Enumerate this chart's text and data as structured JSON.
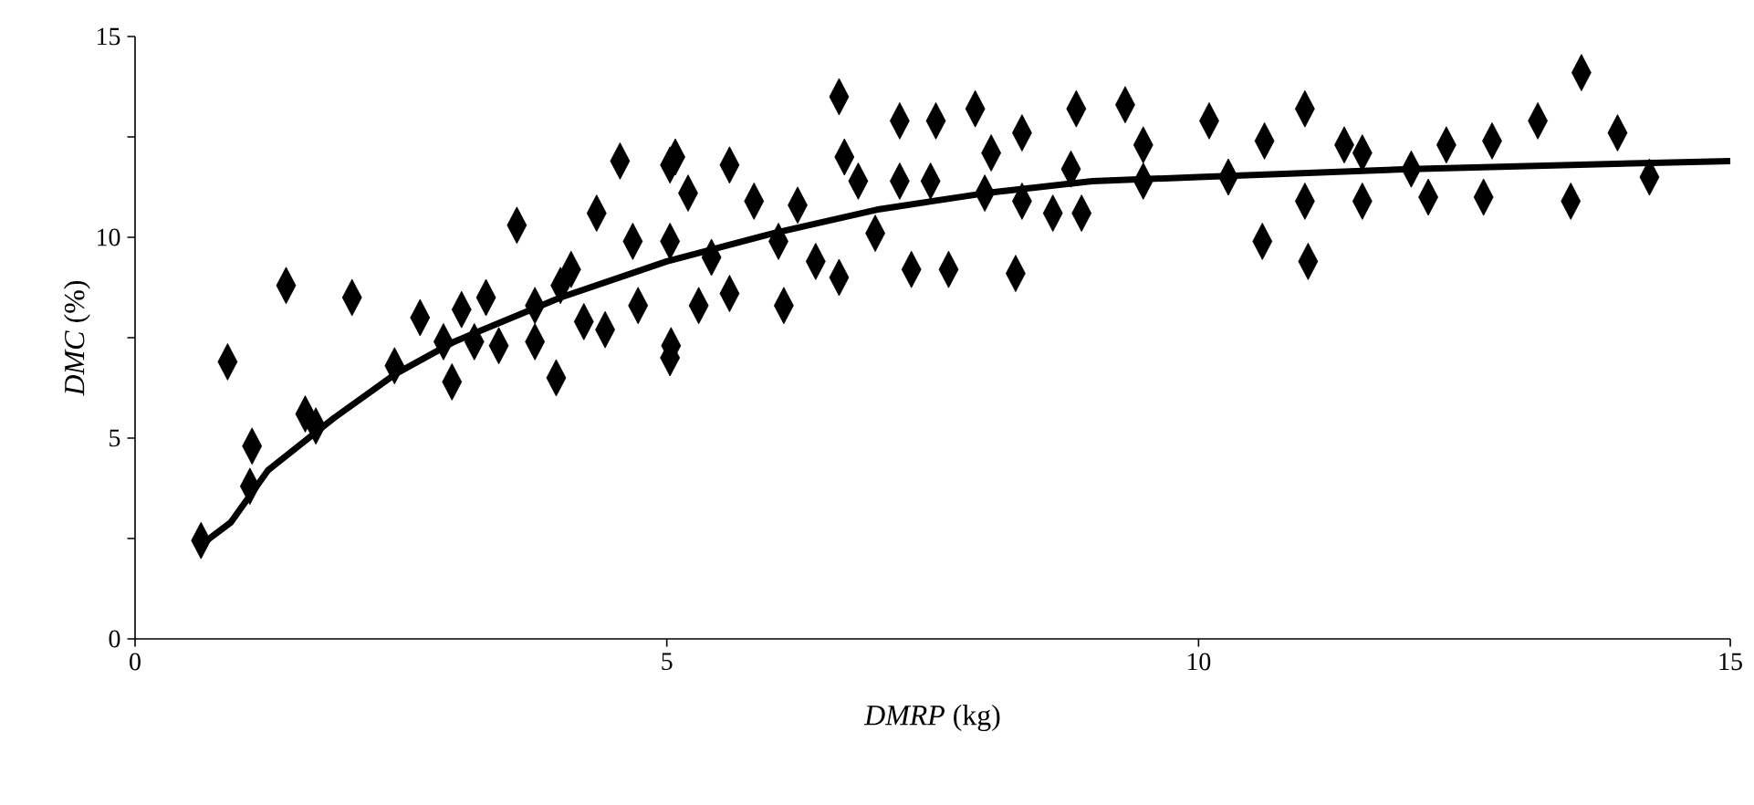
{
  "chart_data": {
    "type": "scatter",
    "xlabel": "*DMRP* (kg)",
    "ylabel": "*DMC* (%)",
    "xlim": [
      0,
      15
    ],
    "ylim": [
      0,
      15
    ],
    "xticks": [
      0,
      5,
      10,
      15
    ],
    "yticks": [
      0,
      {
        "value": 2.5,
        "label": null
      },
      5,
      {
        "value": 7.5,
        "label": null
      },
      10,
      {
        "value": 12.5,
        "label": null
      },
      15
    ],
    "grid": false,
    "marker": "diamond",
    "series": [
      {
        "color": "#000000",
        "x": [
          0.62,
          0.87,
          1.1,
          1.08,
          1.42,
          2.04,
          1.7,
          1.6,
          2.44,
          2.68,
          2.98,
          3.07,
          3.3,
          3.59,
          3.42,
          3.76,
          3.96,
          4.0,
          4.22,
          4.34,
          4.56,
          4.42,
          4.68,
          5.03,
          5.03,
          5.04,
          4.73,
          5.2,
          3.19,
          3.76,
          2.9,
          4.1,
          5.08,
          5.03,
          5.3,
          5.59,
          5.42,
          5.82,
          6.1,
          6.23,
          6.62,
          6.62,
          6.67,
          6.96,
          7.19,
          7.3,
          7.53,
          7.65,
          7.9,
          7.99,
          8.28,
          8.34,
          8.63,
          8.85,
          8.9,
          9.31,
          9.48,
          9.48,
          10.1,
          6.4,
          7.19,
          6.8,
          7.48,
          8.34,
          5.59,
          6.05,
          8.05,
          8.8,
          10.6,
          11.0,
          11.03,
          10.62,
          10.28,
          11.37,
          11.54,
          11.54,
          12.0,
          12.16,
          12.33,
          12.76,
          12.68,
          13.19,
          13.5,
          13.6,
          13.94,
          14.24,
          11.0
        ],
        "values": [
          2.45,
          6.9,
          4.8,
          3.8,
          8.8,
          8.5,
          5.3,
          5.6,
          6.8,
          8.0,
          6.4,
          8.2,
          8.5,
          10.3,
          7.3,
          8.3,
          6.5,
          8.8,
          7.9,
          10.6,
          11.9,
          7.7,
          9.9,
          11.8,
          9.9,
          7.3,
          8.3,
          11.1,
          7.4,
          7.4,
          7.4,
          9.2,
          12.0,
          7.0,
          8.3,
          11.8,
          9.5,
          10.9,
          8.3,
          10.8,
          13.5,
          9.0,
          12.0,
          10.1,
          12.9,
          9.2,
          12.9,
          9.2,
          13.2,
          11.1,
          9.1,
          12.6,
          10.6,
          13.2,
          10.6,
          13.3,
          11.4,
          12.3,
          12.9,
          9.4,
          11.4,
          11.4,
          11.4,
          10.9,
          8.6,
          9.9,
          12.1,
          11.7,
          9.9,
          13.2,
          9.4,
          12.4,
          11.5,
          12.3,
          10.9,
          12.1,
          11.7,
          11.0,
          12.3,
          12.4,
          11.0,
          12.9,
          10.9,
          14.1,
          12.6,
          11.5,
          10.9
        ]
      },
      {
        "type": "line",
        "color": "#000000",
        "marker": "none",
        "line_style": "solid",
        "x": [
          0.6,
          0.9,
          1.25,
          1.87,
          2.45,
          3,
          4,
          5,
          6,
          7,
          8,
          9,
          10,
          12,
          15
        ],
        "values": [
          2.3,
          2.9,
          4.2,
          5.5,
          6.6,
          7.4,
          8.5,
          9.4,
          10.1,
          10.7,
          11.1,
          11.4,
          11.5,
          11.7,
          11.9
        ]
      }
    ]
  }
}
